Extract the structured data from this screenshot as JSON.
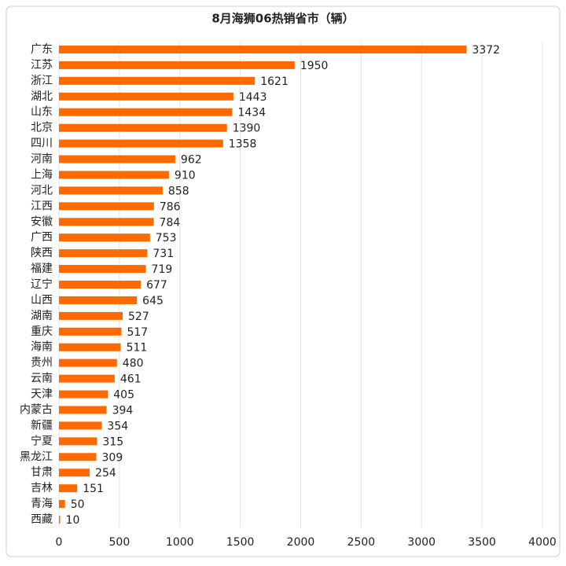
{
  "chart_data": {
    "type": "bar",
    "orientation": "horizontal",
    "title": "8月海狮06热销省市（辆）",
    "categories": [
      "广东",
      "江苏",
      "浙江",
      "湖北",
      "山东",
      "北京",
      "四川",
      "河南",
      "上海",
      "河北",
      "江西",
      "安徽",
      "广西",
      "陕西",
      "福建",
      "辽宁",
      "山西",
      "湖南",
      "重庆",
      "海南",
      "贵州",
      "云南",
      "天津",
      "内蒙古",
      "新疆",
      "宁夏",
      "黑龙江",
      "甘肃",
      "吉林",
      "青海",
      "西藏"
    ],
    "values": [
      3372,
      1950,
      1621,
      1443,
      1434,
      1390,
      1358,
      962,
      910,
      858,
      786,
      784,
      753,
      731,
      719,
      677,
      645,
      527,
      517,
      511,
      480,
      461,
      405,
      394,
      354,
      315,
      309,
      254,
      151,
      50,
      10
    ],
    "color": "#ff6a00",
    "xlim": [
      0,
      4000
    ],
    "xticks": [
      0,
      500,
      1000,
      1500,
      2000,
      2500,
      3000,
      3500,
      4000
    ],
    "grid": true
  }
}
